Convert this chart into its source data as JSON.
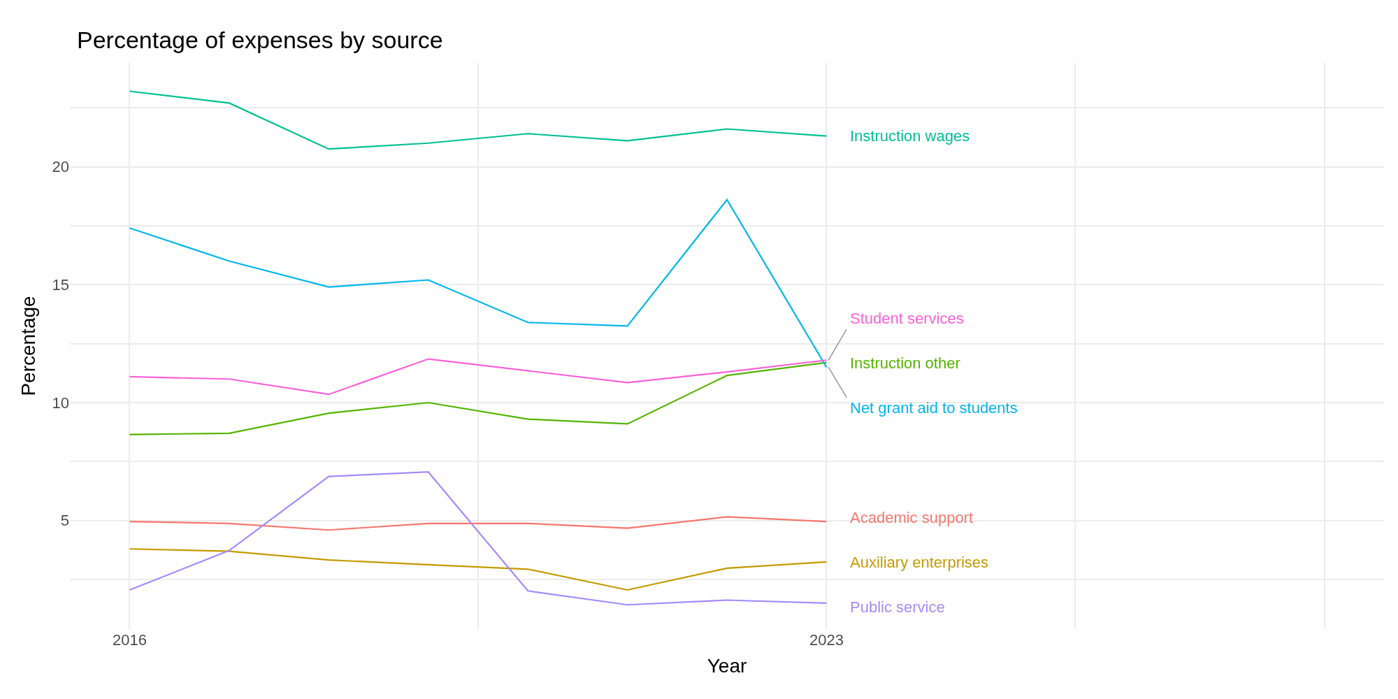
{
  "chart_data": {
    "type": "line",
    "title": "Percentage of expenses by source",
    "xlabel": "Year",
    "ylabel": "Percentage",
    "x": [
      2016,
      2017,
      2018,
      2019,
      2020,
      2021,
      2022,
      2023
    ],
    "xlim": [
      2015.4,
      2028.6
    ],
    "xticks": [
      2016,
      {
        "value": 2019.5,
        "label": null
      },
      2023,
      {
        "value": 2025.5,
        "label": null
      },
      {
        "value": 2028,
        "label": null
      }
    ],
    "ylim": [
      0.4,
      24.4
    ],
    "yticks": [
      {
        "value": 2.5,
        "label": null
      },
      5,
      {
        "value": 7.5,
        "label": null
      },
      10,
      {
        "value": 12.5,
        "label": null
      },
      15,
      {
        "value": 17.5,
        "label": null
      },
      20,
      {
        "value": 22.5,
        "label": null
      }
    ],
    "grid": true,
    "legend": false,
    "marker": "none",
    "line_style": "solid",
    "series": [
      {
        "name": "Academic support",
        "color": "#f8766d",
        "values": [
          4.96,
          4.88,
          4.6,
          4.88,
          4.88,
          4.68,
          5.16,
          4.96
        ]
      },
      {
        "name": "Auxiliary enterprises",
        "color": "#c49a00",
        "values": [
          3.8,
          3.7,
          3.33,
          3.13,
          2.94,
          2.06,
          2.98,
          3.25
        ]
      },
      {
        "name": "Instruction other",
        "color": "#53b400",
        "values": [
          8.65,
          8.7,
          9.55,
          10.0,
          9.3,
          9.1,
          11.15,
          11.7
        ]
      },
      {
        "name": "Instruction wages",
        "color": "#00c094",
        "values": [
          23.2,
          22.7,
          20.75,
          21.0,
          21.4,
          21.1,
          21.6,
          21.3
        ]
      },
      {
        "name": "Net grant aid to students",
        "color": "#00b6eb",
        "values": [
          17.4,
          16.0,
          14.9,
          15.2,
          13.4,
          13.25,
          18.6,
          11.5
        ]
      },
      {
        "name": "Public service",
        "color": "#a58aff",
        "values": [
          2.06,
          3.73,
          6.87,
          7.06,
          2.02,
          1.43,
          1.63,
          1.5
        ]
      },
      {
        "name": "Student services",
        "color": "#fb61d7",
        "values": [
          11.1,
          11.0,
          10.35,
          11.85,
          11.35,
          10.85,
          11.3,
          11.8
        ]
      }
    ]
  }
}
